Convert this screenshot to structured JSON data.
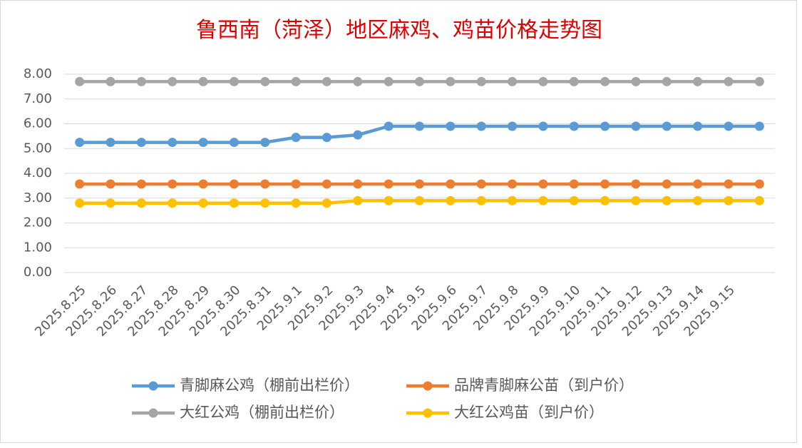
{
  "chart_data": {
    "type": "line",
    "title": "鲁西南（菏泽）地区麻鸡、鸡苗价格走势图",
    "categories": [
      "2025.8.25",
      "2025.8.26",
      "2025.8.27",
      "2025.8.28",
      "2025.8.29",
      "2025.8.30",
      "2025.8.31",
      "2025.9.1",
      "2025.9.2",
      "2025.9.3",
      "2025.9.4",
      "2025.9.5",
      "2025.9.6",
      "2025.9.7",
      "2025.9.8",
      "2025.9.9",
      "2025.9.10",
      "2025.9.11",
      "2025.9.12",
      "2025.9.13",
      "2025.9.14",
      "2025.9.15",
      null
    ],
    "series": [
      {
        "name": "青脚麻公鸡（棚前出栏价）",
        "color": "#5b9bd5",
        "values": [
          5.25,
          5.25,
          5.25,
          5.25,
          5.25,
          5.25,
          5.25,
          5.45,
          5.45,
          5.55,
          5.9,
          5.9,
          5.9,
          5.9,
          5.9,
          5.9,
          5.9,
          5.9,
          5.9,
          5.9,
          5.9,
          5.9,
          5.9
        ]
      },
      {
        "name": "品牌青脚麻公苗（到户价）",
        "color": "#ed7d31",
        "values": [
          3.57,
          3.57,
          3.57,
          3.57,
          3.57,
          3.57,
          3.57,
          3.57,
          3.57,
          3.57,
          3.57,
          3.57,
          3.57,
          3.57,
          3.57,
          3.57,
          3.57,
          3.57,
          3.57,
          3.57,
          3.57,
          3.57,
          3.57
        ]
      },
      {
        "name": "大红公鸡（棚前出栏价）",
        "color": "#a5a5a5",
        "values": [
          7.7,
          7.7,
          7.7,
          7.7,
          7.7,
          7.7,
          7.7,
          7.7,
          7.7,
          7.7,
          7.7,
          7.7,
          7.7,
          7.7,
          7.7,
          7.7,
          7.7,
          7.7,
          7.7,
          7.7,
          7.7,
          7.7,
          7.7
        ]
      },
      {
        "name": "大红公鸡苗（到户价）",
        "color": "#ffc000",
        "values": [
          2.8,
          2.8,
          2.8,
          2.8,
          2.8,
          2.8,
          2.8,
          2.8,
          2.8,
          2.9,
          2.9,
          2.9,
          2.9,
          2.9,
          2.9,
          2.9,
          2.9,
          2.9,
          2.9,
          2.9,
          2.9,
          2.9,
          2.9
        ]
      }
    ],
    "ylim": [
      0,
      8
    ],
    "yticks": [
      {
        "value": 0,
        "label": "0.00"
      },
      {
        "value": 1,
        "label": "1.00"
      },
      {
        "value": 2,
        "label": "2.00"
      },
      {
        "value": 3,
        "label": "3.00"
      },
      {
        "value": 4,
        "label": "4.00"
      },
      {
        "value": 5,
        "label": "5.00"
      },
      {
        "value": 6,
        "label": "6.00"
      },
      {
        "value": 7,
        "label": "7.00"
      },
      {
        "value": 8,
        "label": "8.00"
      }
    ],
    "grid": true,
    "legend": "bottom"
  }
}
